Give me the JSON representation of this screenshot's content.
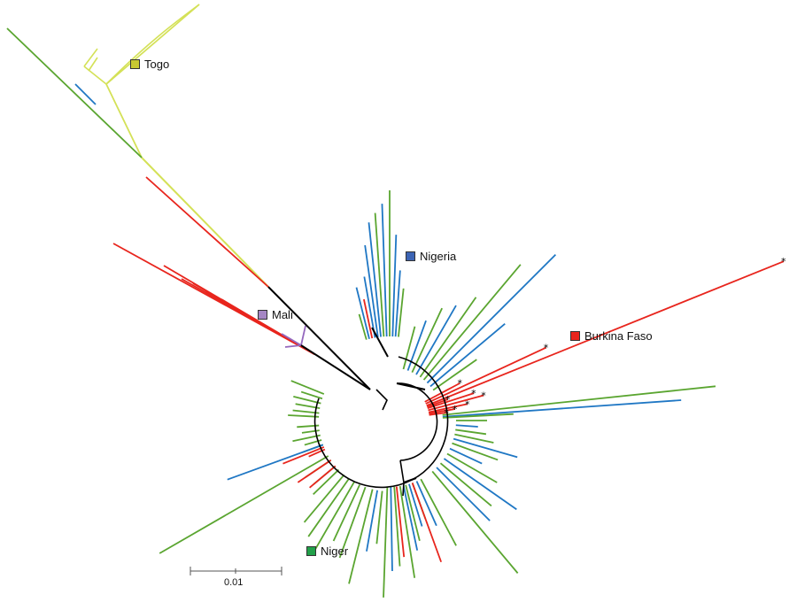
{
  "figure": {
    "type": "phylogenetic-tree",
    "layout": "unrooted-circular",
    "colors": {
      "togo": "#d4e157",
      "nigeria": "#1f77c4",
      "mali": "#9467bd",
      "burkina_faso": "#e8251d",
      "niger": "#5aa530",
      "backbone": "#000000"
    }
  },
  "legend": {
    "togo": {
      "label": "Togo",
      "color": "#c8c832"
    },
    "nigeria": {
      "label": "Nigeria",
      "color": "#3c64b4"
    },
    "mali": {
      "label": "Mali",
      "color": "#a586c4"
    },
    "burkina_faso": {
      "label": "Burkina Faso",
      "color": "#e8251d"
    },
    "niger": {
      "label": "Niger",
      "color": "#22a04a"
    }
  },
  "scale_bar": {
    "label": "0.01"
  },
  "markers": {
    "symbol": "*",
    "count": 9
  }
}
